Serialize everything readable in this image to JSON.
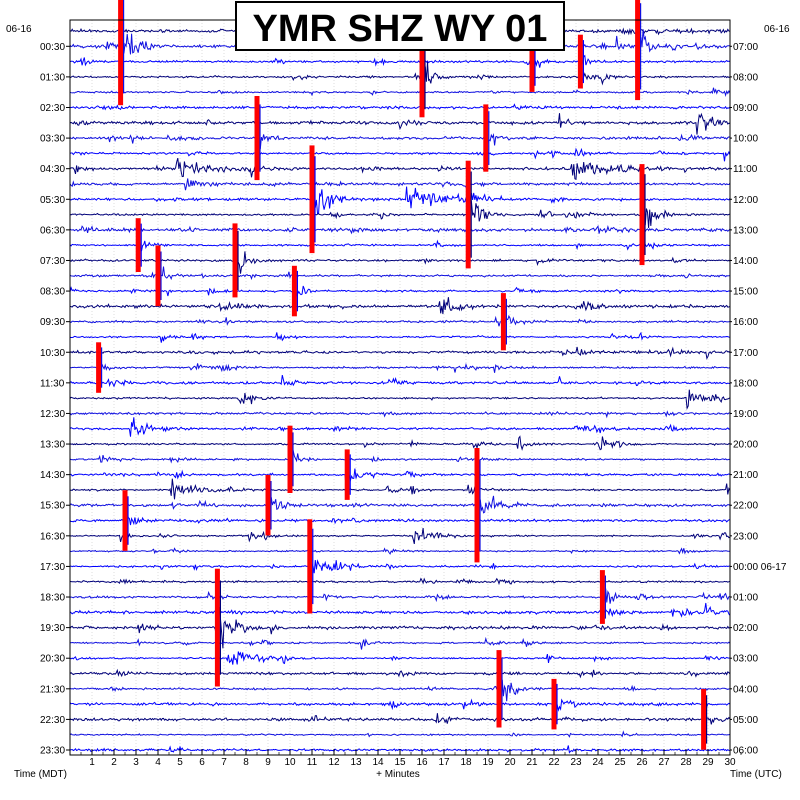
{
  "chart_data": {
    "type": "helicorder",
    "title": "YMR SHZ WY 01",
    "left_axis": {
      "label": "Time (MDT)",
      "date": "06-16",
      "ticks": [
        "00:30",
        "01:30",
        "02:30",
        "03:30",
        "04:30",
        "05:30",
        "06:30",
        "07:30",
        "08:30",
        "09:30",
        "10:30",
        "11:30",
        "12:30",
        "13:30",
        "14:30",
        "15:30",
        "16:30",
        "17:30",
        "18:30",
        "19:30",
        "20:30",
        "21:30",
        "22:30",
        "23:30"
      ]
    },
    "right_axis": {
      "label": "Time (UTC)",
      "date": "06-16",
      "ticks": [
        "07:00",
        "08:00",
        "09:00",
        "10:00",
        "11:00",
        "12:00",
        "13:00",
        "14:00",
        "15:00",
        "16:00",
        "17:00",
        "18:00",
        "19:00",
        "20:00",
        "21:00",
        "22:00",
        "23:00",
        "00:00 06-17",
        "01:00",
        "02:00",
        "03:00",
        "04:00",
        "05:00",
        "06:00"
      ]
    },
    "x_axis": {
      "label": "+ Minutes",
      "range": [
        0,
        30
      ],
      "ticks": [
        1,
        2,
        3,
        4,
        5,
        6,
        7,
        8,
        9,
        10,
        11,
        12,
        13,
        14,
        15,
        16,
        17,
        18,
        19,
        20,
        21,
        22,
        23,
        24,
        25,
        26,
        27,
        28,
        29,
        30
      ]
    },
    "rows": 48,
    "minutes_per_row": 30,
    "grid": true,
    "trace_colors": [
      "#00007a",
      "#1010e0",
      "#0000ff"
    ],
    "clip_color": "#ff0000",
    "events": [
      {
        "row": 1,
        "minute": 2.3,
        "amp": 3.5,
        "dur": 0.5,
        "clip": true
      },
      {
        "row": 1,
        "minute": 25.8,
        "amp": 3.2,
        "dur": 0.4,
        "clip": true
      },
      {
        "row": 2,
        "minute": 21.0,
        "amp": 1.8,
        "dur": 0.3,
        "clip": true
      },
      {
        "row": 2,
        "minute": 23.2,
        "amp": 1.6,
        "dur": 0.3,
        "clip": true
      },
      {
        "row": 3,
        "minute": 16.0,
        "amp": 2.4,
        "dur": 0.4,
        "clip": true
      },
      {
        "row": 6,
        "minute": 28.5,
        "amp": 1.3,
        "dur": 0.6,
        "clip": false
      },
      {
        "row": 7,
        "minute": 8.5,
        "amp": 2.5,
        "dur": 0.3,
        "clip": true
      },
      {
        "row": 7,
        "minute": 18.9,
        "amp": 2.0,
        "dur": 0.3,
        "clip": true
      },
      {
        "row": 9,
        "minute": 4.8,
        "amp": 1.2,
        "dur": 1.2,
        "clip": false
      },
      {
        "row": 9,
        "minute": 22.8,
        "amp": 1.4,
        "dur": 1.5,
        "clip": false
      },
      {
        "row": 11,
        "minute": 11.0,
        "amp": 3.2,
        "dur": 0.6,
        "clip": true
      },
      {
        "row": 11,
        "minute": 15.3,
        "amp": 1.5,
        "dur": 1.5,
        "clip": false
      },
      {
        "row": 12,
        "minute": 18.1,
        "amp": 3.2,
        "dur": 0.5,
        "clip": true
      },
      {
        "row": 12,
        "minute": 26.0,
        "amp": 3.0,
        "dur": 0.5,
        "clip": true
      },
      {
        "row": 14,
        "minute": 3.1,
        "amp": 1.6,
        "dur": 0.3,
        "clip": true
      },
      {
        "row": 15,
        "minute": 7.5,
        "amp": 2.2,
        "dur": 0.4,
        "clip": true
      },
      {
        "row": 16,
        "minute": 4.0,
        "amp": 1.8,
        "dur": 0.3,
        "clip": true
      },
      {
        "row": 17,
        "minute": 10.2,
        "amp": 1.5,
        "dur": 0.3,
        "clip": true
      },
      {
        "row": 18,
        "minute": 16.8,
        "amp": 1.4,
        "dur": 0.6,
        "clip": false
      },
      {
        "row": 19,
        "minute": 19.7,
        "amp": 1.7,
        "dur": 0.4,
        "clip": true
      },
      {
        "row": 22,
        "minute": 1.3,
        "amp": 1.5,
        "dur": 0.3,
        "clip": true
      },
      {
        "row": 24,
        "minute": 28.0,
        "amp": 1.5,
        "dur": 0.7,
        "clip": false
      },
      {
        "row": 26,
        "minute": 2.8,
        "amp": 1.4,
        "dur": 0.8,
        "clip": false
      },
      {
        "row": 28,
        "minute": 10.0,
        "amp": 2.0,
        "dur": 0.3,
        "clip": true
      },
      {
        "row": 29,
        "minute": 12.6,
        "amp": 1.5,
        "dur": 0.5,
        "clip": true
      },
      {
        "row": 30,
        "minute": 4.6,
        "amp": 1.3,
        "dur": 1.0,
        "clip": false
      },
      {
        "row": 31,
        "minute": 18.5,
        "amp": 3.4,
        "dur": 0.5,
        "clip": true
      },
      {
        "row": 31,
        "minute": 9.0,
        "amp": 1.8,
        "dur": 0.4,
        "clip": true
      },
      {
        "row": 32,
        "minute": 2.5,
        "amp": 1.8,
        "dur": 0.3,
        "clip": true
      },
      {
        "row": 33,
        "minute": 15.6,
        "amp": 1.3,
        "dur": 0.8,
        "clip": false
      },
      {
        "row": 35,
        "minute": 10.9,
        "amp": 2.8,
        "dur": 0.5,
        "clip": true
      },
      {
        "row": 37,
        "minute": 24.2,
        "amp": 1.6,
        "dur": 0.4,
        "clip": true
      },
      {
        "row": 39,
        "minute": 6.7,
        "amp": 3.5,
        "dur": 0.6,
        "clip": true
      },
      {
        "row": 41,
        "minute": 7.2,
        "amp": 1.5,
        "dur": 1.0,
        "clip": false
      },
      {
        "row": 43,
        "minute": 19.5,
        "amp": 2.3,
        "dur": 0.4,
        "clip": true
      },
      {
        "row": 44,
        "minute": 22.0,
        "amp": 1.5,
        "dur": 0.4,
        "clip": true
      },
      {
        "row": 45,
        "minute": 28.8,
        "amp": 1.8,
        "dur": 0.4,
        "clip": true
      }
    ]
  }
}
